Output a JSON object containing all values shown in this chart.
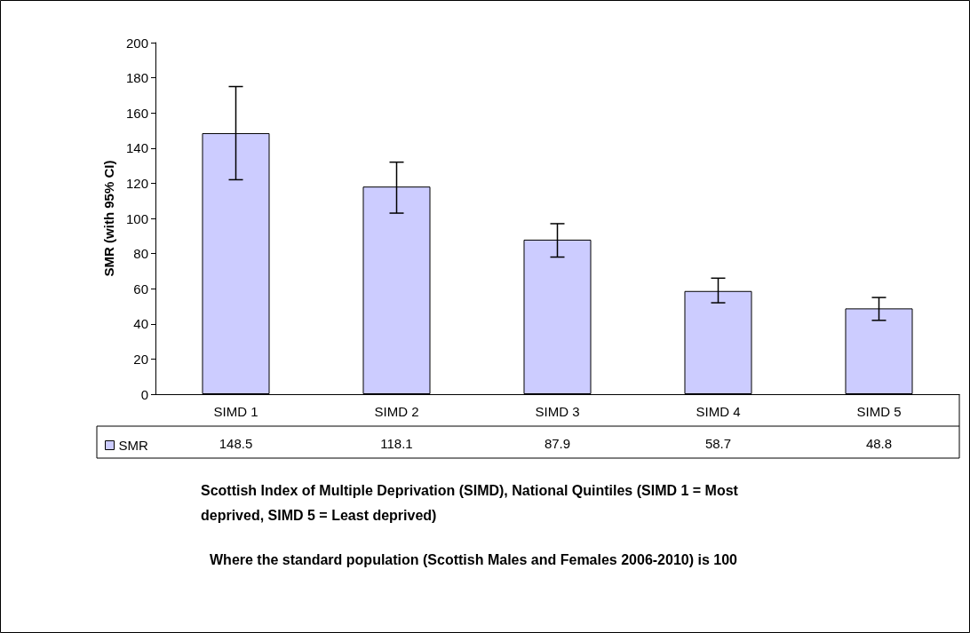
{
  "chart_data": {
    "type": "bar",
    "ylabel": "SMR (with 95% CI)",
    "xlabel": "Scottish Index of Multiple Deprivation (SIMD), National Quintiles (SIMD 1 = Most deprived, SIMD 5 = Least deprived)",
    "annotations": [
      "Where the standard population (Scottish Males and Females 2006-2010) is 100"
    ],
    "categories": [
      "SIMD 1",
      "SIMD 2",
      "SIMD 3",
      "SIMD 4",
      "SIMD 5"
    ],
    "series": [
      {
        "name": "SMR",
        "color": "#ccccff",
        "values": [
          148.5,
          118.1,
          87.9,
          58.7,
          48.8
        ],
        "errors": [
          [
            122,
            175
          ],
          [
            103,
            132
          ],
          [
            78,
            97
          ],
          [
            52,
            66
          ],
          [
            42,
            55
          ]
        ]
      }
    ],
    "ylim": [
      0,
      200
    ],
    "yticks": [
      0,
      20,
      40,
      60,
      80,
      100,
      120,
      140,
      160,
      180,
      200
    ],
    "grid": false,
    "legend": "bottom left",
    "data_labels": true
  }
}
